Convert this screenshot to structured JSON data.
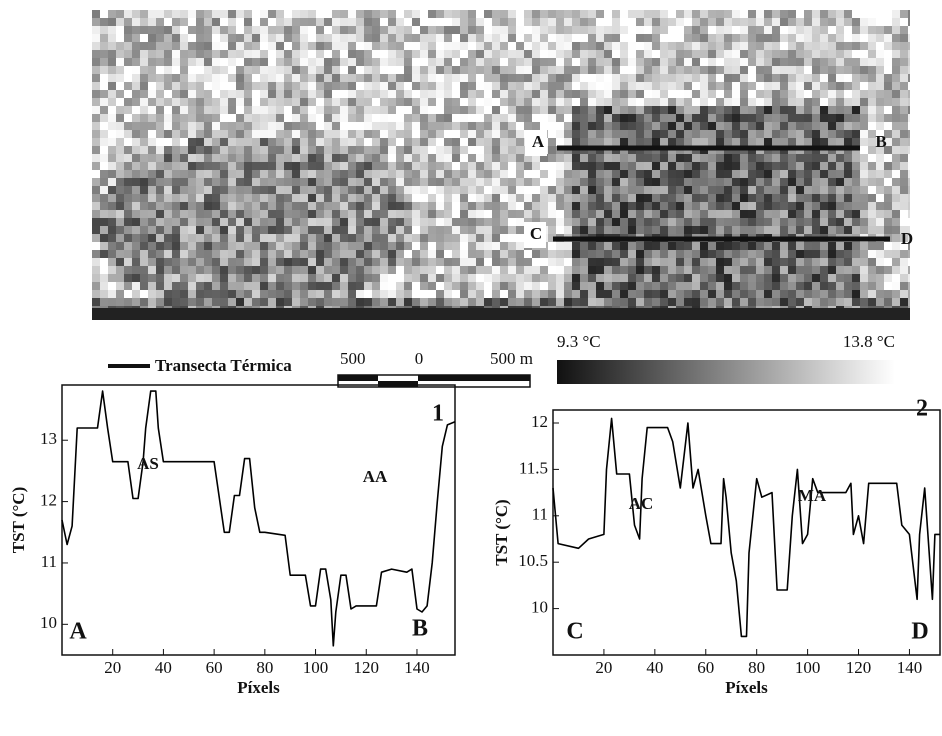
{
  "map": {
    "labels": [
      "A",
      "B",
      "C",
      "D"
    ]
  },
  "legend": {
    "transect": "Transecta Térmica",
    "scale": [
      "500",
      "0",
      "500 m"
    ],
    "colorbar": [
      "9.3 °C",
      "13.8 °C"
    ]
  },
  "chart_data": [
    {
      "type": "line",
      "number": "1",
      "ylabel": "TST (°C)",
      "xlabel": "Píxels",
      "annotations": [
        "AS",
        "AA",
        "A",
        "B"
      ],
      "xlim": [
        0,
        155
      ],
      "ylim": [
        9.5,
        13.9
      ],
      "xticks": [
        20,
        40,
        60,
        80,
        100,
        120,
        140
      ],
      "yticks": [
        10,
        11,
        12,
        13
      ],
      "series": [
        {
          "color": "#000000",
          "x": [
            0,
            2,
            4,
            6,
            14,
            16,
            17,
            18,
            20,
            26,
            28,
            30,
            32,
            33,
            35,
            37,
            38,
            40,
            60,
            64,
            66,
            68,
            70,
            72,
            74,
            76,
            78,
            80,
            88,
            90,
            96,
            98,
            100,
            102,
            104,
            106,
            107,
            108,
            110,
            112,
            114,
            116,
            124,
            126,
            130,
            136,
            138,
            140,
            142,
            144,
            146,
            148,
            150,
            152,
            155
          ],
          "values": [
            11.7,
            11.3,
            11.6,
            13.2,
            13.2,
            13.8,
            13.5,
            13.2,
            12.65,
            12.65,
            12.05,
            12.05,
            12.65,
            13.2,
            13.8,
            13.8,
            13.2,
            12.65,
            12.65,
            11.5,
            11.5,
            12.1,
            12.1,
            12.7,
            12.7,
            11.9,
            11.5,
            11.5,
            11.45,
            10.8,
            10.8,
            10.3,
            10.3,
            10.9,
            10.9,
            10.4,
            9.65,
            10.2,
            10.8,
            10.8,
            10.25,
            10.3,
            10.3,
            10.85,
            10.9,
            10.85,
            10.9,
            10.25,
            10.2,
            10.3,
            11.0,
            12.0,
            12.9,
            13.25,
            13.3
          ]
        }
      ]
    },
    {
      "type": "line",
      "number": "2",
      "ylabel": "TST (°C)",
      "xlabel": "Píxels",
      "annotations": [
        "AC",
        "MA",
        "C",
        "D"
      ],
      "xlim": [
        0,
        152
      ],
      "ylim": [
        9.5,
        12.14
      ],
      "xticks": [
        20,
        40,
        60,
        80,
        100,
        120,
        140
      ],
      "yticks": [
        10,
        10.5,
        11,
        11.5,
        12
      ],
      "series": [
        {
          "color": "#000000",
          "x": [
            0,
            2,
            10,
            14,
            20,
            21,
            23,
            25,
            30,
            32,
            34,
            35,
            37,
            45,
            47,
            50,
            53,
            55,
            57,
            60,
            62,
            66,
            67,
            68,
            70,
            72,
            74,
            76,
            77,
            80,
            82,
            86,
            88,
            92,
            94,
            96,
            98,
            100,
            102,
            104,
            115,
            117,
            118,
            120,
            122,
            124,
            135,
            137,
            140,
            143,
            144,
            146,
            149,
            150,
            152
          ],
          "values": [
            11.3,
            10.7,
            10.65,
            10.75,
            10.8,
            11.5,
            12.05,
            11.45,
            11.45,
            10.9,
            10.75,
            11.4,
            11.95,
            11.95,
            11.8,
            11.3,
            12.0,
            11.3,
            11.5,
            11.0,
            10.7,
            10.7,
            11.4,
            11.2,
            10.6,
            10.3,
            9.7,
            9.7,
            10.6,
            11.4,
            11.2,
            11.25,
            10.2,
            10.2,
            11.0,
            11.5,
            10.7,
            10.8,
            11.4,
            11.25,
            11.25,
            11.35,
            10.8,
            11.0,
            10.7,
            11.35,
            11.35,
            10.9,
            10.8,
            10.1,
            10.8,
            11.3,
            10.1,
            10.8,
            10.8
          ]
        }
      ]
    }
  ]
}
